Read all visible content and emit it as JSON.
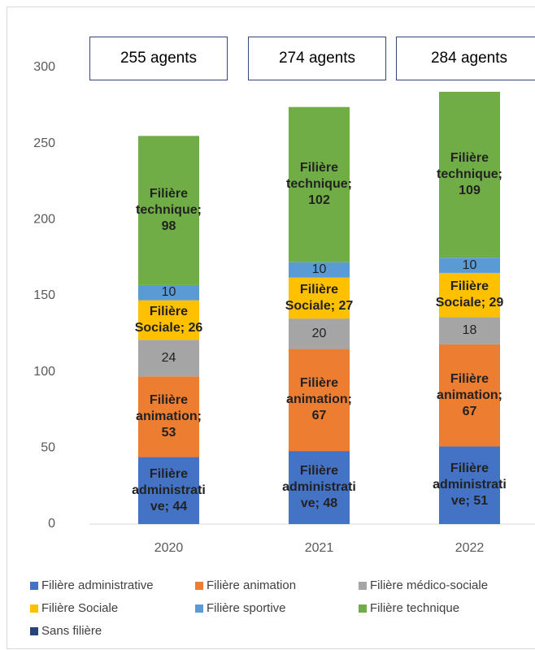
{
  "chart_data": {
    "type": "stacked_bar",
    "categories": [
      "2020",
      "2021",
      "2022"
    ],
    "annotations": [
      "255 agents",
      "274 agents",
      "284 agents"
    ],
    "series": [
      {
        "name": "Filière administrative",
        "color": "#4472c4",
        "values": [
          44,
          48,
          51
        ],
        "value_labels": [
          "Filière administrative; 44",
          "Filière administrative; 48",
          "Filière administrative; 51"
        ]
      },
      {
        "name": "Filière animation",
        "color": "#ed7d31",
        "values": [
          53,
          67,
          67
        ],
        "value_labels": [
          "Filière animation; 53",
          "Filière animation; 67",
          "Filière animation; 67"
        ]
      },
      {
        "name": "Filière médico-sociale",
        "color": "#a5a5a5",
        "values": [
          24,
          20,
          18
        ]
      },
      {
        "name": "Filière Sociale",
        "color": "#ffc000",
        "values": [
          26,
          27,
          29
        ],
        "value_labels": [
          "Filière Sociale; 26",
          "Filière Sociale; 27",
          "Filière Sociale; 29"
        ]
      },
      {
        "name": "Filière sportive",
        "color": "#5b9bd5",
        "values": [
          10,
          10,
          10
        ]
      },
      {
        "name": "Filière technique",
        "color": "#70ad47",
        "values": [
          98,
          102,
          109
        ],
        "value_labels": [
          "Filière technique; 98",
          "Filière technique; 102",
          "Filière technique; 109"
        ]
      },
      {
        "name": "Sans filière",
        "color": "#264478",
        "values": [
          0,
          0,
          0
        ]
      }
    ],
    "ylim": [
      0,
      300
    ],
    "yticks": [
      0,
      50,
      100,
      150,
      200,
      250,
      300
    ],
    "grid": false
  }
}
